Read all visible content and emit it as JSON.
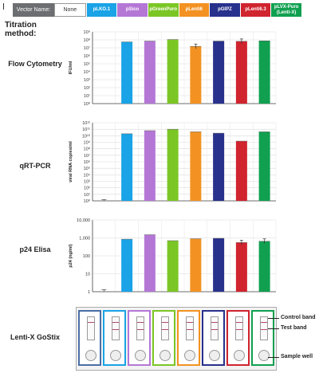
{
  "legend": {
    "header": "Vector Name:",
    "items": [
      {
        "label": "None",
        "color": "#ffffff"
      },
      {
        "label": "pLKO.1",
        "color": "#1aa3e6"
      },
      {
        "label": "pSico",
        "color": "#b477d6"
      },
      {
        "label": "pGreenPuro",
        "color": "#7bc625"
      },
      {
        "label": "pLenti6",
        "color": "#f39222"
      },
      {
        "label": "pGIPZ",
        "color": "#28318c"
      },
      {
        "label": "pLenti6.3",
        "color": "#d0242f"
      },
      {
        "label": "pLVX-Puro (Lenti-X)",
        "color": "#10a050"
      }
    ]
  },
  "titration_method": "Titration method:",
  "chart_data": [
    {
      "type": "bar",
      "row_label": "Flow Cytometry",
      "ylabel": "IFU/ml",
      "scale": "log",
      "ylim_exp": [
        0,
        9
      ],
      "tick_labels": [
        "10⁰",
        "10¹",
        "10²",
        "10³",
        "10⁴",
        "10⁵",
        "10⁶",
        "10⁷",
        "10⁸",
        "10⁹"
      ],
      "categories": [
        "None",
        "pLKO.1",
        "pSico",
        "pGreenPuro",
        "pLenti6",
        "pGIPZ",
        "pLenti6.3",
        "pLVX-Puro (Lenti-X)"
      ],
      "values": [
        null,
        55000000.0,
        70000000.0,
        110000000.0,
        15000000.0,
        70000000.0,
        65000000.0,
        75000000.0
      ],
      "error_bars": [
        false,
        false,
        false,
        false,
        true,
        false,
        true,
        false
      ]
    },
    {
      "type": "bar",
      "row_label": "qRT-PCR",
      "ylabel": "viral RNA copies/ml",
      "scale": "log",
      "ylim_exp": [
        0,
        12
      ],
      "tick_labels": [
        "10⁰",
        "10¹",
        "10²",
        "10³",
        "10⁴",
        "10⁵",
        "10⁶",
        "10⁷",
        "10⁸",
        "10⁹",
        "10¹⁰",
        "10¹¹",
        "10¹²"
      ],
      "categories": [
        "None",
        "pLKO.1",
        "pSico",
        "pGreenPuro",
        "pLenti6",
        "pGIPZ",
        "pLenti6.3",
        "pLVX-Puro (Lenti-X)"
      ],
      "values": [
        1.5,
        20000000000.0,
        60000000000.0,
        100000000000.0,
        40000000000.0,
        25000000000.0,
        1500000000.0,
        40000000000.0
      ],
      "error_bars": [
        true,
        false,
        false,
        false,
        false,
        false,
        false,
        false
      ]
    },
    {
      "type": "bar",
      "row_label": "p24 Elisa",
      "ylabel": "p24 (ng/ml)",
      "scale": "log",
      "ylim_exp": [
        0,
        4
      ],
      "tick_labels": [
        "1",
        "10",
        "100",
        "1,000",
        "10,000"
      ],
      "categories": [
        "None",
        "pLKO.1",
        "pSico",
        "pGreenPuro",
        "pLenti6",
        "pGIPZ",
        "pLenti6.3",
        "pLVX-Puro (Lenti-X)"
      ],
      "values": [
        1.3,
        850,
        1500,
        700,
        900,
        950,
        550,
        650
      ],
      "error_bars": [
        true,
        false,
        false,
        false,
        false,
        false,
        true,
        true
      ]
    }
  ],
  "gostix": {
    "row_label": "Lenti-X GoStix",
    "callouts": [
      "Control band",
      "Test band",
      "Sample well"
    ],
    "test_band": [
      false,
      true,
      true,
      true,
      true,
      true,
      true,
      true
    ]
  }
}
